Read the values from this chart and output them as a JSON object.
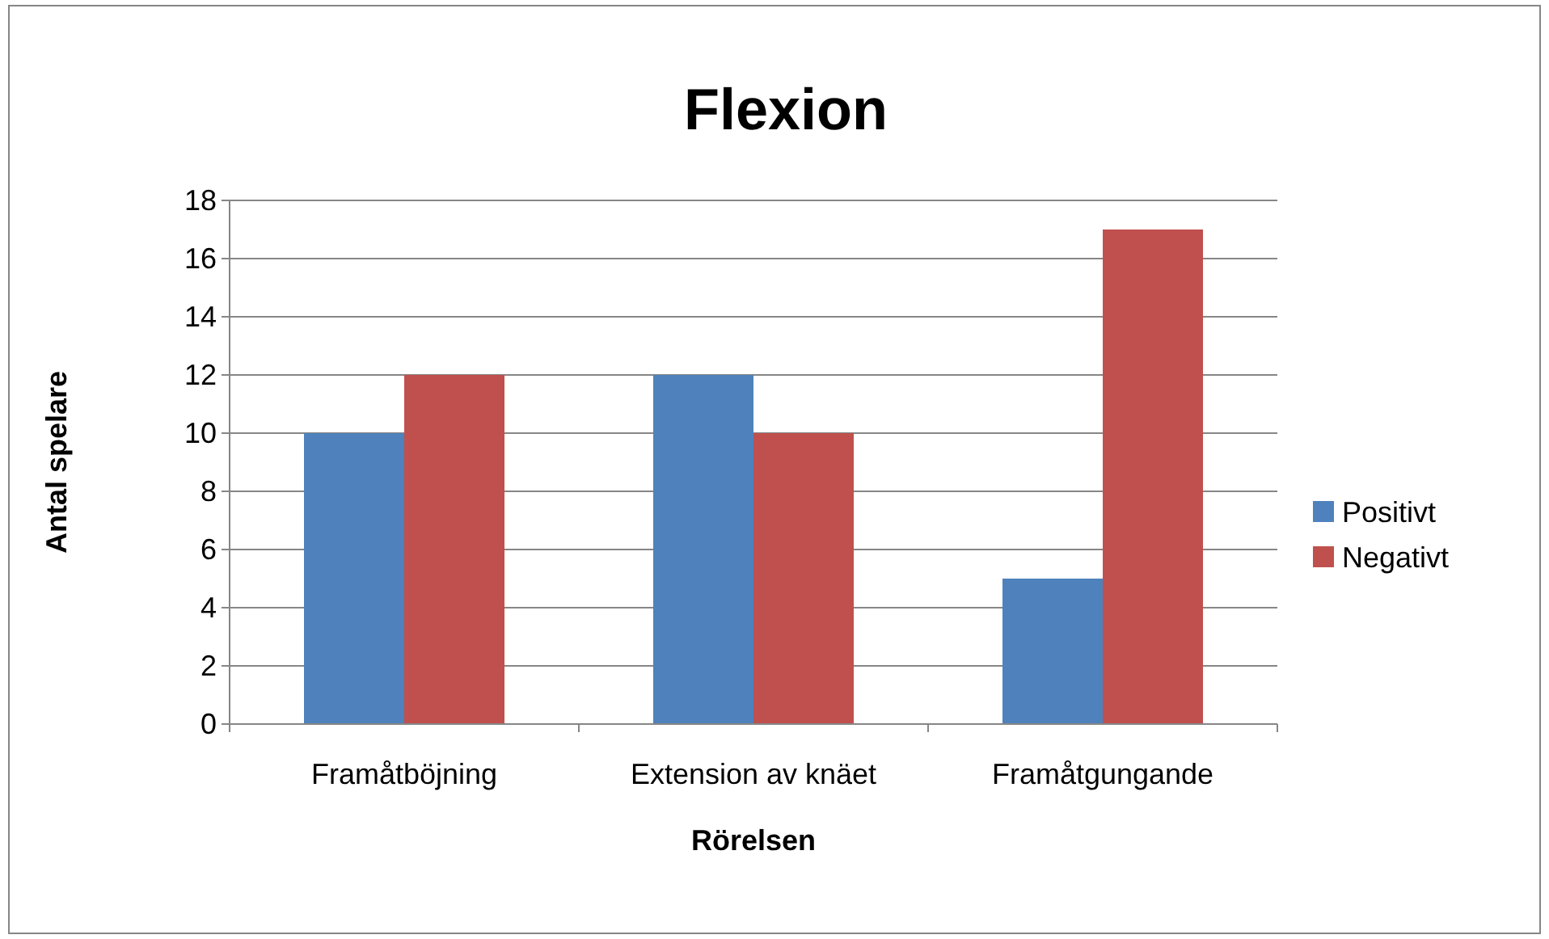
{
  "chart_data": {
    "type": "bar",
    "title": "Flexion",
    "xlabel": "Rörelsen",
    "ylabel": "Antal spelare",
    "categories": [
      "Framåtböjning",
      "Extension av knäet",
      "Framåtgungande"
    ],
    "series": [
      {
        "name": "Positivt",
        "color": "#4f81bd",
        "values": [
          10,
          12,
          5
        ]
      },
      {
        "name": "Negativt",
        "color": "#c0504d",
        "values": [
          12,
          10,
          17
        ]
      }
    ],
    "ylim": [
      0,
      18
    ],
    "yticks": [
      0,
      2,
      4,
      6,
      8,
      10,
      12,
      14,
      16,
      18
    ],
    "grid": "y",
    "legend": "right"
  }
}
